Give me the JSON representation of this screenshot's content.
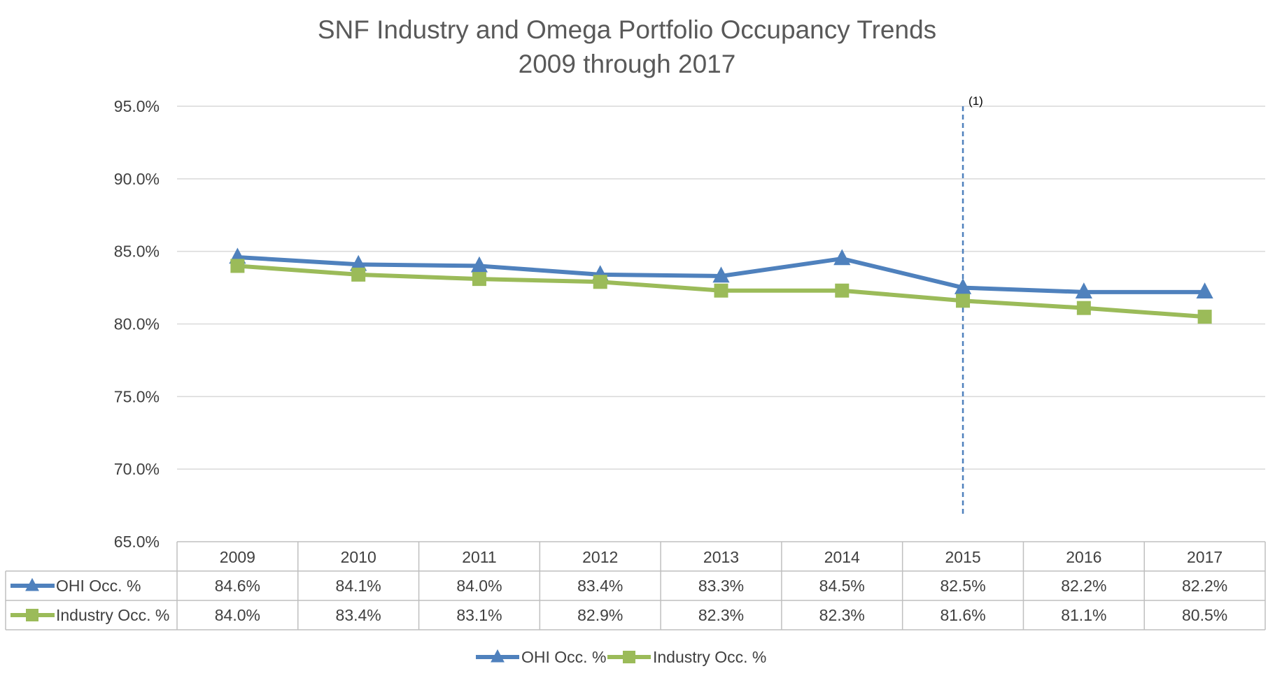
{
  "chart_data": {
    "type": "line",
    "title": "SNF Industry and Omega Portfolio Occupancy Trends",
    "subtitle": "2009 through 2017",
    "categories": [
      "2009",
      "2010",
      "2011",
      "2012",
      "2013",
      "2014",
      "2015",
      "2016",
      "2017"
    ],
    "ylim": [
      65.0,
      95.0
    ],
    "yticks": [
      "95.0%",
      "90.0%",
      "85.0%",
      "80.0%",
      "75.0%",
      "70.0%",
      "65.0%"
    ],
    "ytick_values": [
      95,
      90,
      85,
      80,
      75,
      70,
      65
    ],
    "grid": true,
    "legend_position": "bottom",
    "annotation": {
      "label": "(1)",
      "category": "2015"
    },
    "series": [
      {
        "name": "OHI Occ. %",
        "color": "#4F81BD",
        "marker": "triangle",
        "values": [
          84.6,
          84.1,
          84.0,
          83.4,
          83.3,
          84.5,
          82.5,
          82.2,
          82.2
        ],
        "labels": [
          "84.6%",
          "84.1%",
          "84.0%",
          "83.4%",
          "83.3%",
          "84.5%",
          "82.5%",
          "82.2%",
          "82.2%"
        ]
      },
      {
        "name": "Industry Occ. %",
        "color": "#9BBB59",
        "marker": "square",
        "values": [
          84.0,
          83.4,
          83.1,
          82.9,
          82.3,
          82.3,
          81.6,
          81.1,
          80.5
        ],
        "labels": [
          "84.0%",
          "83.4%",
          "83.1%",
          "82.9%",
          "82.3%",
          "82.3%",
          "81.6%",
          "81.1%",
          "80.5%"
        ]
      }
    ]
  }
}
